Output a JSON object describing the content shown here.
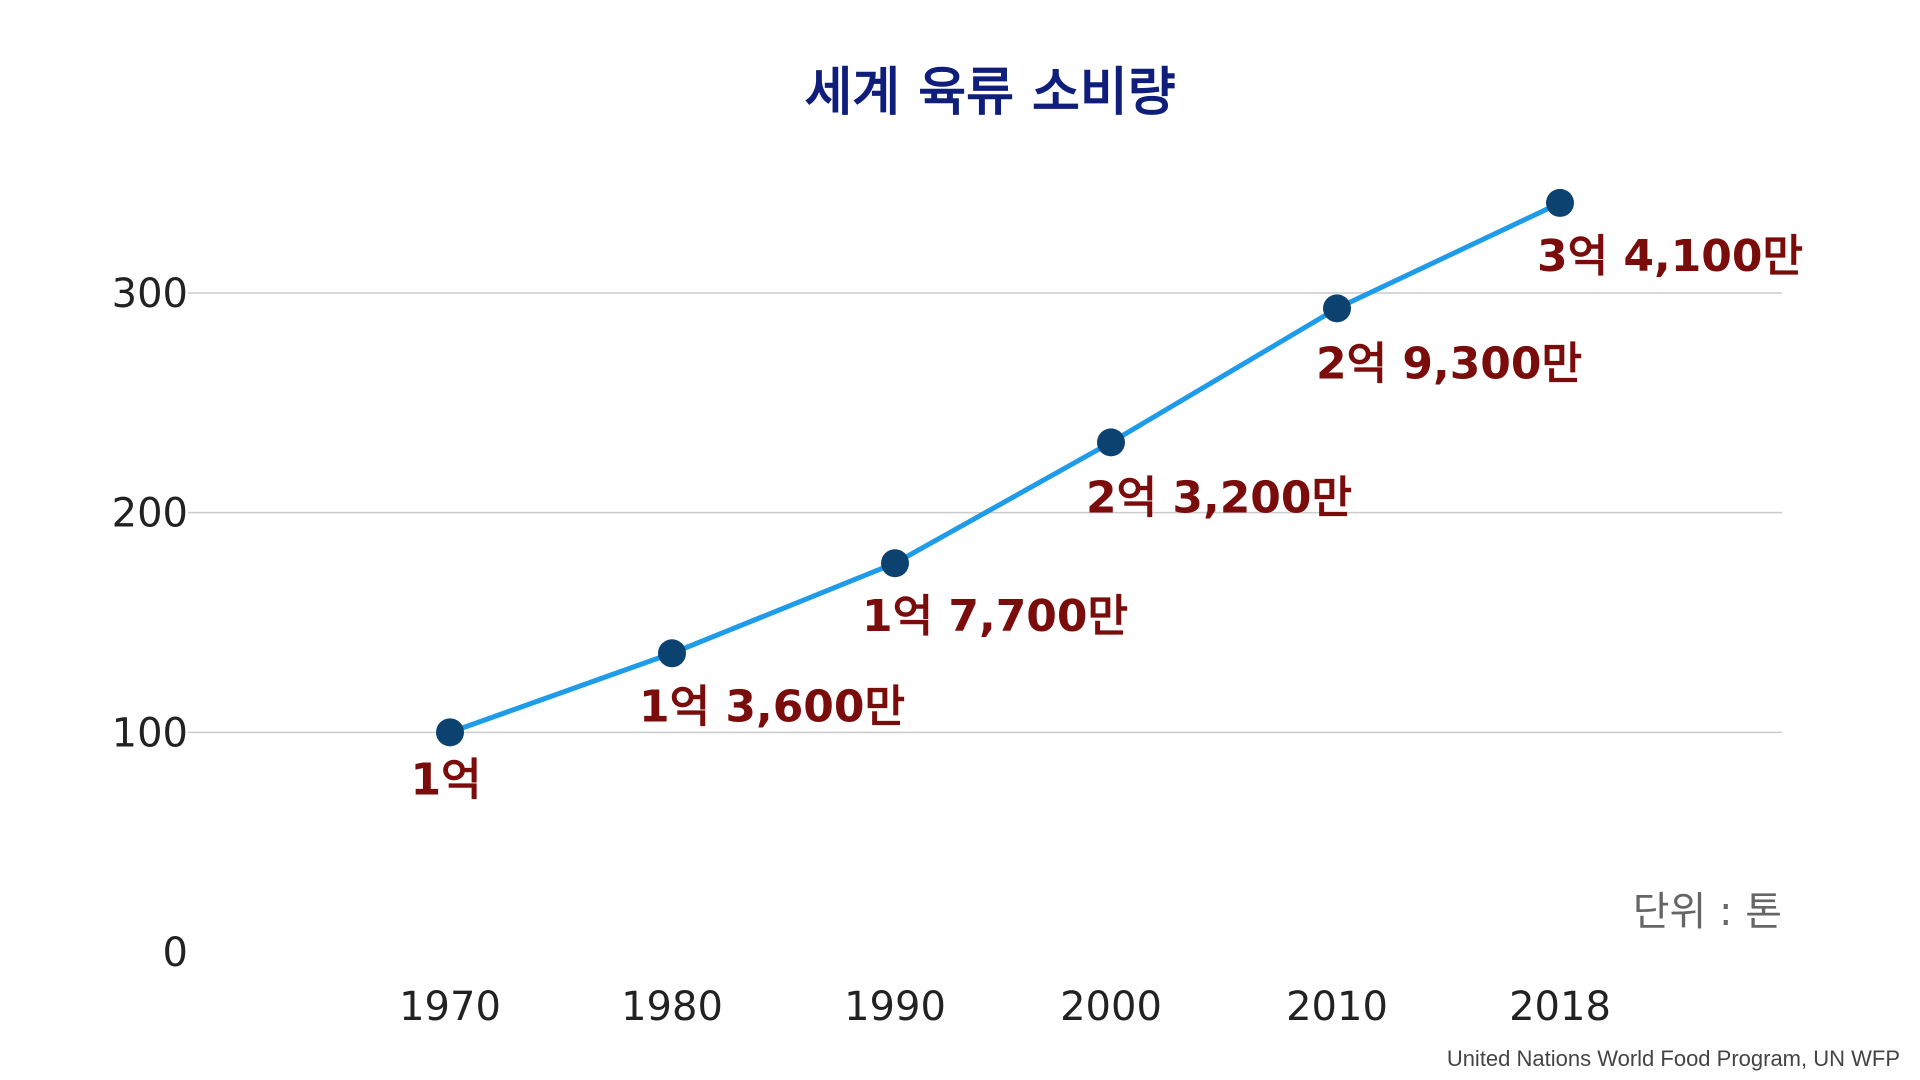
{
  "chart_data": {
    "type": "line",
    "title": "세계 육류 소비량",
    "x": [
      "1970",
      "1980",
      "1990",
      "2000",
      "2010",
      "2018"
    ],
    "series": [
      {
        "values": [
          100,
          136,
          177,
          232,
          293,
          341
        ],
        "labels": [
          "1억",
          "1억 3,600만",
          "1억 7,700만",
          "2억 3,200만",
          "2억 9,300만",
          "3억 4,100만"
        ]
      }
    ],
    "yticks": [
      0,
      100,
      200,
      300
    ],
    "ylim": [
      0,
      350
    ],
    "grid": true,
    "unit": "단위 : 톤",
    "source": "United Nations World Food Program, UN WFP",
    "colors": {
      "title": "#0f1e7a",
      "line": "#1e9be9",
      "marker": "#0c4270",
      "data_label": "#7a0c0c",
      "grid": "#cccccc",
      "tick": "#222222",
      "unit": "#666666",
      "source": "#444444"
    }
  }
}
